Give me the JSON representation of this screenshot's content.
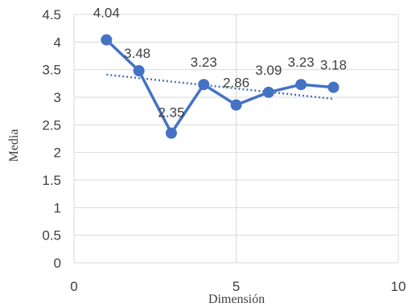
{
  "chart_data": {
    "type": "scatter",
    "xlabel": "Dimensión",
    "ylabel": "Media",
    "xlim": [
      0,
      10
    ],
    "ylim": [
      0,
      4.5
    ],
    "x_ticks": [
      "0",
      "5",
      "10"
    ],
    "x_tick_values": [
      0,
      5,
      10
    ],
    "y_ticks": [
      "0",
      "0.5",
      "1",
      "1.5",
      "2",
      "2.5",
      "3",
      "3.5",
      "4",
      "4.5"
    ],
    "y_tick_values": [
      0,
      0.5,
      1,
      1.5,
      2,
      2.5,
      3,
      3.5,
      4,
      4.5
    ],
    "grid": true,
    "legend": "none",
    "series": [
      {
        "style": "line-with-markers",
        "x": [
          1,
          2,
          3,
          4,
          5,
          6,
          7,
          8
        ],
        "y": [
          4.04,
          3.48,
          2.35,
          3.23,
          2.86,
          3.09,
          3.23,
          3.18
        ],
        "labels": [
          "4.04",
          "3.48",
          "2.35",
          "3.23",
          "2.86",
          "3.09",
          "3.23",
          "3.18"
        ],
        "color": "#4472c4"
      }
    ],
    "trendline": {
      "type": "linear",
      "style": "dotted",
      "color": "#4472c4",
      "x": [
        1,
        8
      ],
      "y": [
        3.41,
        2.97
      ]
    }
  }
}
